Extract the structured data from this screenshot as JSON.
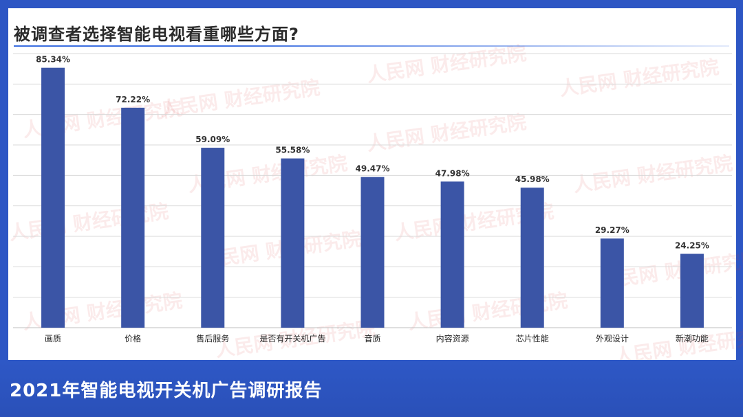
{
  "page": {
    "title": "被调查者选择智能电视看重哪些方面?",
    "footer_title": "2021年智能电视开关机广告调研报告",
    "watermark": "人民网 财经研究院"
  },
  "colors": {
    "bar": "#3b55a6",
    "frame": "#2d56c4",
    "grid": "#d9d9d9",
    "axis": "#bfbfbf"
  },
  "chart_data": {
    "type": "bar",
    "title": "被调查者选择智能电视看重哪些方面?",
    "categories": [
      "画质",
      "价格",
      "售后服务",
      "是否有开关机广告",
      "音质",
      "内容资源",
      "芯片性能",
      "外观设计",
      "新潮功能"
    ],
    "values": [
      85.34,
      72.22,
      59.09,
      55.58,
      49.47,
      47.98,
      45.98,
      29.27,
      24.25
    ],
    "value_labels": [
      "85.34%",
      "72.22%",
      "59.09%",
      "55.58%",
      "49.47%",
      "47.98%",
      "45.98%",
      "29.27%",
      "24.25%"
    ],
    "ylim": [
      0,
      90
    ],
    "grid": true,
    "xlabel": "",
    "ylabel": ""
  }
}
